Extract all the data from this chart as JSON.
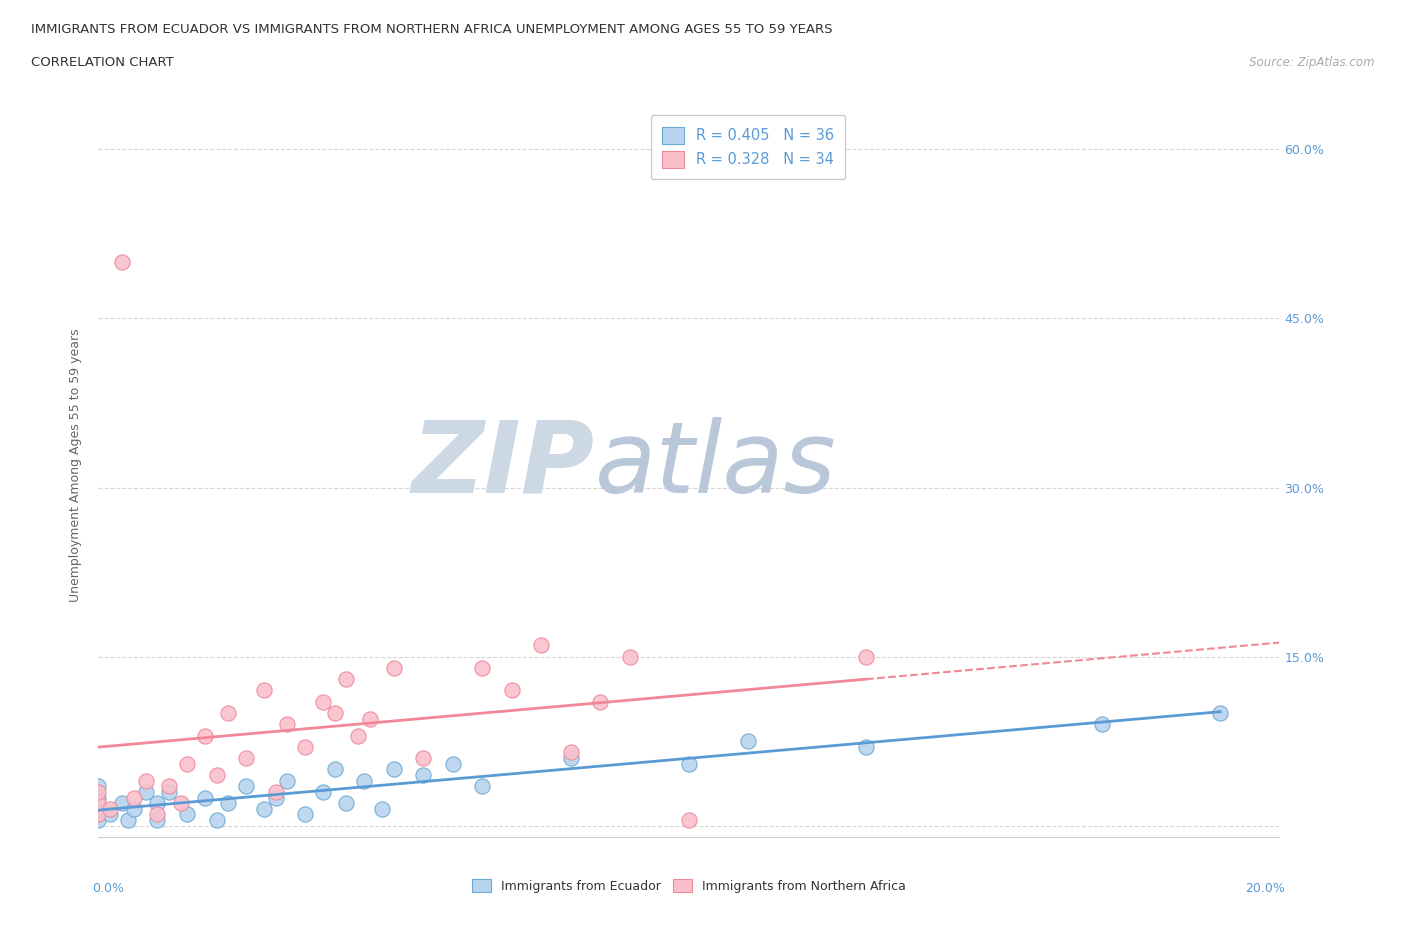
{
  "title_line1": "IMMIGRANTS FROM ECUADOR VS IMMIGRANTS FROM NORTHERN AFRICA UNEMPLOYMENT AMONG AGES 55 TO 59 YEARS",
  "title_line2": "CORRELATION CHART",
  "source_text": "Source: ZipAtlas.com",
  "ylabel": "Unemployment Among Ages 55 to 59 years",
  "y_ticks": [
    0.0,
    0.15,
    0.3,
    0.45,
    0.6
  ],
  "y_tick_labels": [
    "",
    "15.0%",
    "30.0%",
    "45.0%",
    "60.0%"
  ],
  "x_lim": [
    0.0,
    0.2
  ],
  "y_lim": [
    -0.01,
    0.65
  ],
  "ecuador_R": 0.405,
  "ecuador_N": 36,
  "n_africa_R": 0.328,
  "n_africa_N": 34,
  "ecuador_color": "#b8d4ee",
  "n_africa_color": "#f9c0cc",
  "ecuador_edge_color": "#6aaad4",
  "n_africa_edge_color": "#f08898",
  "ecuador_line_color": "#5b9bd5",
  "n_africa_line_color": "#f08898",
  "watermark_zip_color": "#c8d8e8",
  "watermark_atlas_color": "#c0ccda",
  "ecuador_points_x": [
    0.0,
    0.0,
    0.0,
    0.0,
    0.002,
    0.004,
    0.005,
    0.006,
    0.008,
    0.01,
    0.01,
    0.012,
    0.015,
    0.018,
    0.02,
    0.022,
    0.025,
    0.028,
    0.03,
    0.032,
    0.035,
    0.038,
    0.04,
    0.042,
    0.045,
    0.048,
    0.05,
    0.055,
    0.06,
    0.065,
    0.08,
    0.1,
    0.11,
    0.13,
    0.17,
    0.19
  ],
  "ecuador_points_y": [
    0.005,
    0.015,
    0.025,
    0.035,
    0.01,
    0.02,
    0.005,
    0.015,
    0.03,
    0.005,
    0.02,
    0.03,
    0.01,
    0.025,
    0.005,
    0.02,
    0.035,
    0.015,
    0.025,
    0.04,
    0.01,
    0.03,
    0.05,
    0.02,
    0.04,
    0.015,
    0.05,
    0.045,
    0.055,
    0.035,
    0.06,
    0.055,
    0.075,
    0.07,
    0.09,
    0.1
  ],
  "n_africa_points_x": [
    0.0,
    0.0,
    0.0,
    0.002,
    0.004,
    0.006,
    0.008,
    0.01,
    0.012,
    0.014,
    0.015,
    0.018,
    0.02,
    0.022,
    0.025,
    0.028,
    0.03,
    0.032,
    0.035,
    0.038,
    0.04,
    0.042,
    0.044,
    0.046,
    0.05,
    0.055,
    0.065,
    0.07,
    0.075,
    0.08,
    0.085,
    0.09,
    0.1,
    0.13
  ],
  "n_africa_points_y": [
    0.01,
    0.02,
    0.03,
    0.015,
    0.5,
    0.025,
    0.04,
    0.01,
    0.035,
    0.02,
    0.055,
    0.08,
    0.045,
    0.1,
    0.06,
    0.12,
    0.03,
    0.09,
    0.07,
    0.11,
    0.1,
    0.13,
    0.08,
    0.095,
    0.14,
    0.06,
    0.14,
    0.12,
    0.16,
    0.065,
    0.11,
    0.15,
    0.005,
    0.15
  ]
}
